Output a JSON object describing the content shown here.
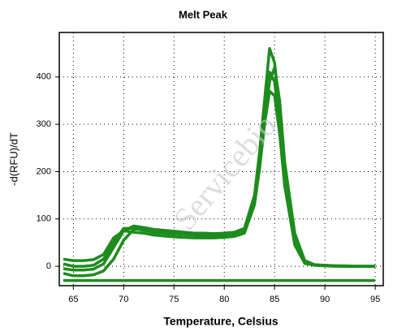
{
  "chart_data": {
    "type": "line",
    "title": "Melt Peak",
    "x_label": "Temperature, Celsius",
    "y_label": "-d(RFU)/dT",
    "watermark": "Servicebio",
    "x": [
      64,
      65,
      66,
      67,
      68,
      69,
      70,
      71,
      72,
      73,
      74,
      75,
      76,
      77,
      78,
      79,
      80,
      81,
      82,
      83,
      83.5,
      84,
      84.5,
      85,
      85.5,
      86,
      87,
      88,
      89,
      90,
      91,
      92,
      93,
      94,
      95
    ],
    "series": [
      {
        "color": "#1d8c1d",
        "values": [
          -5,
          -8,
          -8,
          -6,
          5,
          40,
          75,
          85,
          82,
          78,
          76,
          74,
          72,
          70,
          70,
          69,
          70,
          72,
          80,
          150,
          240,
          350,
          460,
          430,
          330,
          200,
          60,
          10,
          3,
          2,
          1,
          1,
          0,
          0,
          0
        ]
      },
      {
        "color": "#1d8c1d",
        "values": [
          5,
          0,
          0,
          2,
          15,
          50,
          80,
          80,
          76,
          72,
          70,
          68,
          67,
          66,
          65,
          65,
          66,
          68,
          76,
          140,
          220,
          320,
          410,
          390,
          300,
          180,
          50,
          8,
          2,
          1,
          1,
          0,
          0,
          0,
          0
        ]
      },
      {
        "color": "#1d8c1d",
        "values": [
          15,
          12,
          12,
          14,
          25,
          60,
          75,
          72,
          70,
          66,
          64,
          62,
          61,
          60,
          60,
          60,
          61,
          63,
          70,
          130,
          205,
          300,
          370,
          360,
          280,
          170,
          45,
          6,
          2,
          1,
          0,
          0,
          0,
          0,
          0
        ]
      },
      {
        "color": "#1d8c1d",
        "values": [
          -15,
          -20,
          -20,
          -18,
          -10,
          15,
          55,
          78,
          80,
          75,
          72,
          70,
          68,
          67,
          66,
          66,
          67,
          69,
          77,
          135,
          210,
          310,
          390,
          420,
          350,
          220,
          70,
          12,
          3,
          2,
          1,
          0,
          0,
          0,
          0
        ]
      },
      {
        "color": "#1d8c1d",
        "values": [
          -30,
          -30,
          -30,
          -30,
          -30,
          -30,
          -30,
          -30,
          -30,
          -30,
          -30,
          -30,
          -30,
          -30,
          -30,
          -30,
          -30,
          -30,
          -30,
          -30,
          -30,
          -30,
          -30,
          -30,
          -30,
          -30,
          -30,
          -30,
          -30,
          -30,
          -30,
          -30,
          -30,
          -30,
          -30
        ]
      }
    ],
    "xlim": [
      63.6,
      95.8
    ],
    "ylim": [
      -41,
      494
    ],
    "xticks": [
      65,
      70,
      75,
      80,
      85,
      90,
      95
    ],
    "yticks": [
      0,
      100,
      200,
      300,
      400
    ],
    "grid": true
  }
}
